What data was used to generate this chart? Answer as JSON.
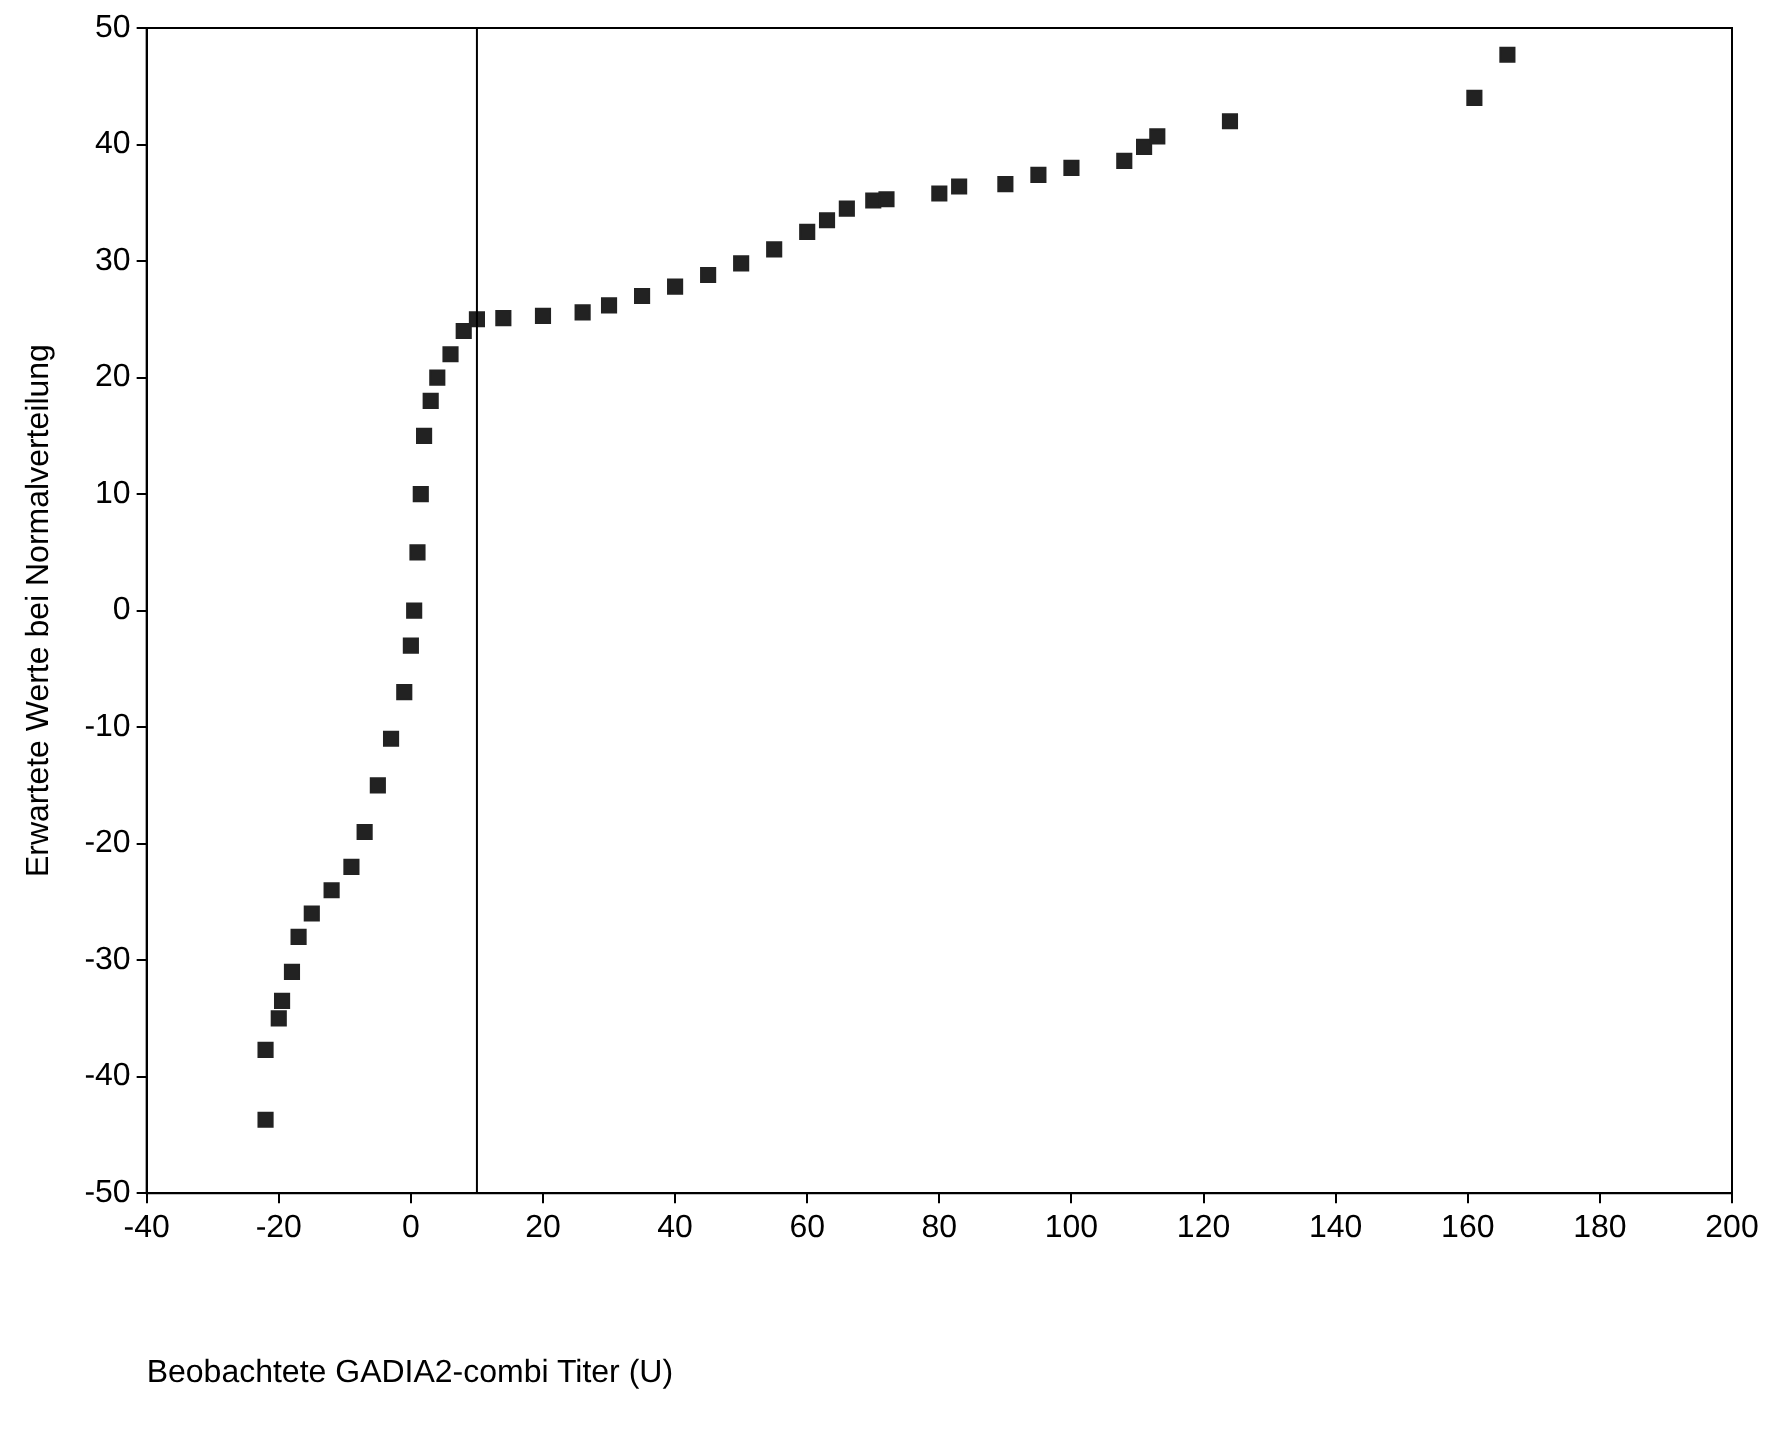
{
  "chart_data": {
    "type": "scatter",
    "xlabel": "Beobachtete GADIA2-combi Titer (U)",
    "ylabel": "Erwartete Werte bei Normalverteilung",
    "x": [
      -22,
      -22,
      -20,
      -19.5,
      -18,
      -17,
      -15,
      -12,
      -9,
      -7,
      -5,
      -3,
      -1,
      0,
      0.5,
      1,
      1.5,
      2,
      3,
      4,
      6,
      8,
      10,
      14,
      20,
      26,
      30,
      35,
      40,
      45,
      50,
      55,
      60,
      63,
      66,
      70,
      72,
      80,
      83,
      90,
      95,
      100,
      108,
      111,
      113,
      124,
      161,
      166
    ],
    "series": [
      {
        "color": "#222222",
        "values": [
          -43.7,
          -37.7,
          -35,
          -33.5,
          -31,
          -28,
          -26,
          -24,
          -22,
          -19,
          -15,
          -11,
          -7,
          -3,
          0,
          5,
          10,
          15,
          18,
          20,
          22,
          24,
          25,
          25.1,
          25.3,
          25.6,
          26.2,
          27,
          27.8,
          28.8,
          29.8,
          31,
          32.5,
          33.5,
          34.5,
          35.2,
          35.3,
          35.8,
          36.4,
          36.6,
          37.4,
          38,
          38.6,
          39.8,
          40.7,
          42,
          44,
          47.7
        ]
      }
    ],
    "xlim": [
      -40,
      200
    ],
    "xticks": [
      -40,
      -20,
      0,
      20,
      40,
      60,
      80,
      100,
      120,
      140,
      160,
      180,
      200
    ],
    "ylim": [
      -50,
      50
    ],
    "yticks": [
      -50,
      -40,
      -30,
      -20,
      -10,
      0,
      10,
      20,
      30,
      40,
      50
    ],
    "ref_lines": [
      {
        "axis": "x",
        "value": 10,
        "color": "#000000"
      }
    ],
    "marker": "square",
    "grid": false,
    "legend": false
  }
}
